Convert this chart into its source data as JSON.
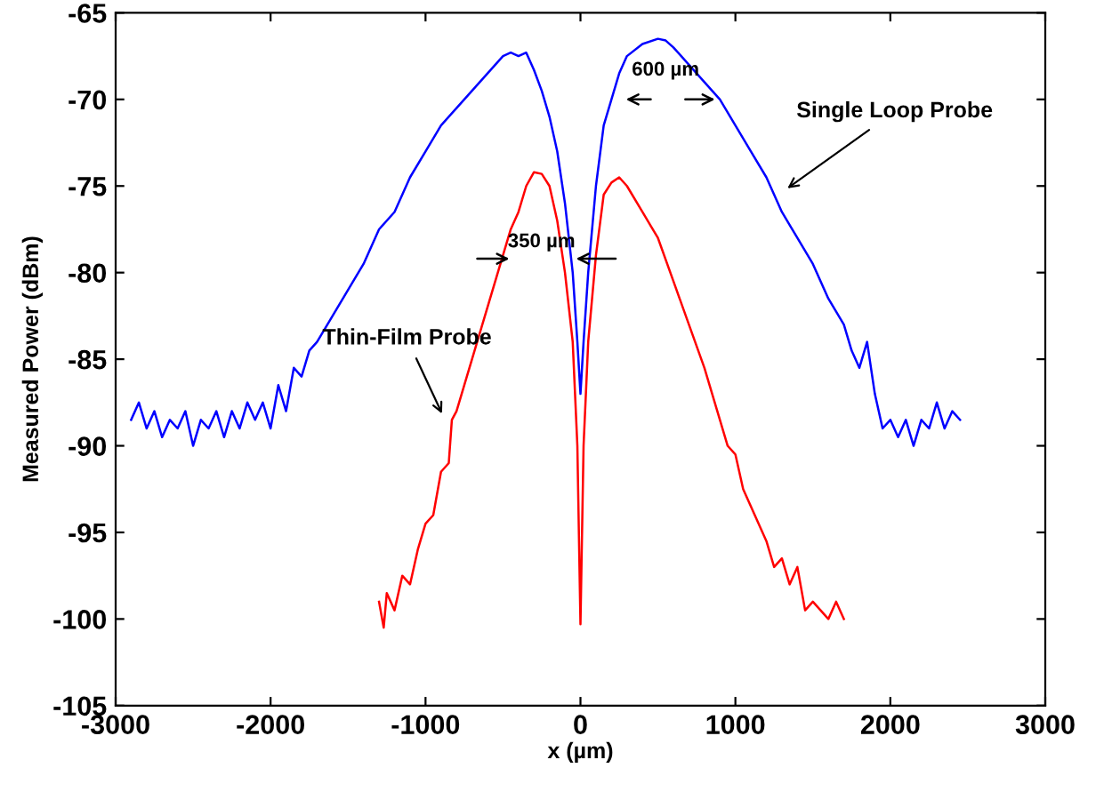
{
  "chart_data": {
    "type": "line",
    "xlabel": "x (µm)",
    "ylabel": "Measured Power (dBm)",
    "xlim": [
      -3000,
      3000
    ],
    "ylim": [
      -105,
      -65
    ],
    "xticks": [
      -3000,
      -2000,
      -1000,
      0,
      1000,
      2000,
      3000
    ],
    "yticks": [
      -105,
      -100,
      -95,
      -90,
      -85,
      -80,
      -75,
      -70,
      -65
    ],
    "grid": false,
    "legend": false,
    "series": [
      {
        "color": "#0000ff",
        "x": [
          -2900,
          -2850,
          -2800,
          -2750,
          -2700,
          -2650,
          -2600,
          -2550,
          -2500,
          -2450,
          -2400,
          -2350,
          -2300,
          -2250,
          -2200,
          -2150,
          -2100,
          -2050,
          -2000,
          -1950,
          -1900,
          -1850,
          -1800,
          -1750,
          -1700,
          -1600,
          -1500,
          -1400,
          -1300,
          -1200,
          -1100,
          -1000,
          -900,
          -800,
          -700,
          -600,
          -500,
          -450,
          -400,
          -350,
          -300,
          -250,
          -200,
          -150,
          -100,
          -50,
          -20,
          0,
          20,
          50,
          100,
          150,
          200,
          250,
          300,
          400,
          500,
          550,
          600,
          700,
          800,
          900,
          1000,
          1100,
          1200,
          1300,
          1400,
          1500,
          1600,
          1700,
          1750,
          1800,
          1850,
          1900,
          1950,
          2000,
          2050,
          2100,
          2150,
          2200,
          2250,
          2300,
          2350,
          2400,
          2450
        ],
        "values": [
          -88.5,
          -87.5,
          -89,
          -88,
          -89.5,
          -88.5,
          -89,
          -88,
          -90,
          -88.5,
          -89,
          -88,
          -89.5,
          -88,
          -89,
          -87.5,
          -88.5,
          -87.5,
          -89,
          -86.5,
          -88,
          -85.5,
          -86,
          -84.5,
          -84,
          -82.5,
          -81,
          -79.5,
          -77.5,
          -76.5,
          -74.5,
          -73,
          -71.5,
          -70.5,
          -69.5,
          -68.5,
          -67.5,
          -67.3,
          -67.5,
          -67.3,
          -68.3,
          -69.5,
          -71,
          -73,
          -76,
          -80,
          -84,
          -87,
          -84,
          -80,
          -75,
          -71.5,
          -70,
          -68.5,
          -67.5,
          -66.8,
          -66.5,
          -66.6,
          -67,
          -68,
          -69,
          -70,
          -71.5,
          -73,
          -74.5,
          -76.5,
          -78,
          -79.5,
          -81.5,
          -83,
          -84.5,
          -85.5,
          -84,
          -87,
          -89,
          -88.5,
          -89.5,
          -88.5,
          -90,
          -88.5,
          -89,
          -87.5,
          -89,
          -88,
          -88.5
        ]
      },
      {
        "color": "#ff0000",
        "x": [
          -1300,
          -1270,
          -1250,
          -1200,
          -1150,
          -1100,
          -1050,
          -1000,
          -950,
          -900,
          -850,
          -830,
          -800,
          -750,
          -700,
          -600,
          -500,
          -450,
          -400,
          -350,
          -300,
          -250,
          -200,
          -150,
          -100,
          -50,
          -20,
          0,
          20,
          50,
          100,
          150,
          200,
          250,
          300,
          400,
          500,
          600,
          700,
          800,
          850,
          900,
          950,
          1000,
          1050,
          1100,
          1150,
          1200,
          1250,
          1300,
          1350,
          1400,
          1450,
          1500,
          1550,
          1600,
          1650,
          1700
        ],
        "values": [
          -99,
          -100.5,
          -98.5,
          -99.5,
          -97.5,
          -98,
          -96,
          -94.5,
          -94,
          -91.5,
          -91,
          -88.5,
          -88,
          -86.5,
          -85,
          -82,
          -79,
          -77.5,
          -76.5,
          -75,
          -74.2,
          -74.3,
          -75,
          -77,
          -80,
          -84,
          -90,
          -100.3,
          -90,
          -84,
          -79,
          -75.5,
          -74.8,
          -74.5,
          -75,
          -76.5,
          -78,
          -80.5,
          -83,
          -85.5,
          -87,
          -88.5,
          -90,
          -90.5,
          -92.5,
          -93.5,
          -94.5,
          -95.5,
          -97,
          -96.5,
          -98,
          -97,
          -99.5,
          -99,
          -99.5,
          -100,
          -99,
          -100
        ]
      }
    ],
    "annotations": [
      {
        "text": "600 µm",
        "x": 900,
        "y": -70
      },
      {
        "text": "350 µm",
        "x": -60,
        "y": -79.2
      },
      {
        "text": "Single Loop Probe",
        "x": 1310,
        "y": -75.3
      },
      {
        "text": "Thin-Film Probe",
        "x": -880,
        "y": -88.4
      }
    ]
  }
}
